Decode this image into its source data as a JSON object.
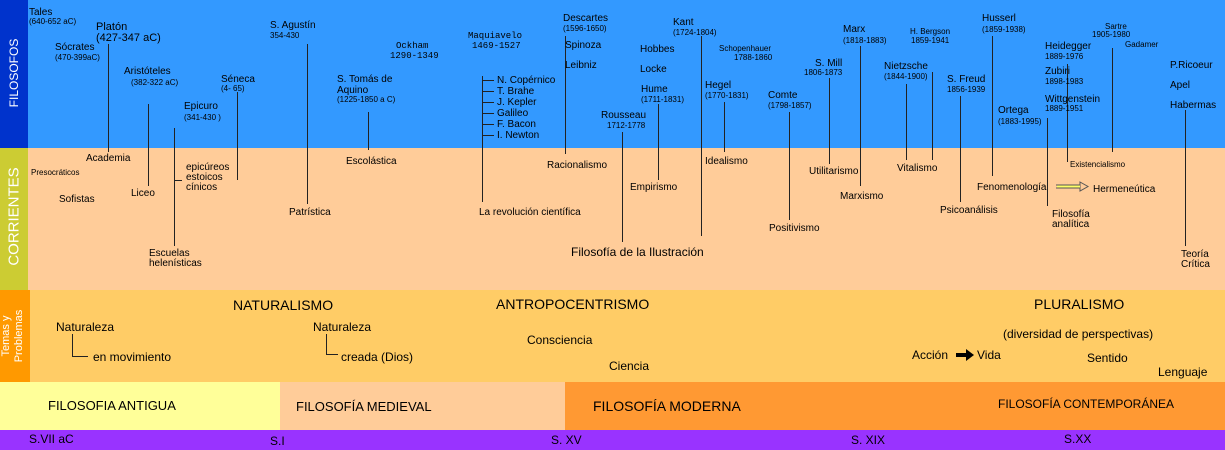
{
  "colors": {
    "filosofos_band": "#3399ff",
    "filosofos_label_bg": "#0033cc",
    "corrientes_band": "#ffcc99",
    "corrientes_label_bg": "#cccc33",
    "temas_band": "#ffcc66",
    "temas_label_bg": "#ff9900",
    "antigua": "#ffff99",
    "medieval": "#ffcc99",
    "moderna": "#ff9933",
    "contemporanea": "#ff9933",
    "century_bar": "#9933ff"
  },
  "rows": {
    "filosofos": "FILOSOFOS",
    "corrientes": "CORRIENTES",
    "temas": "Temas y\nProblemas"
  },
  "philosophers": {
    "tales": "Tales",
    "tales_d": "(640-652 aC)",
    "platon": "Platón",
    "platon_d": "(427-347 aC)",
    "socrates": "Sócrates",
    "socrates_d": "(470-399aC)",
    "aristoteles": "Aristóteles",
    "aristoteles_d": "(382-322 aC)",
    "seneca": "Séneca",
    "seneca_d": "(4- 65)",
    "epicuro": "Epicuro",
    "epicuro_d": "(341-430 )",
    "agustin": "S. Agustín",
    "agustin_d": "354-430",
    "tomas1": "S. Tomás de",
    "tomas2": "Aquino",
    "tomas_d": "(1225-1850 a C)",
    "ockham": "Ockham",
    "ockham_d": "1290-1349",
    "maquiavelo": "Maquiavelo",
    "maquiavelo_d": "1469-1527",
    "copernico": "N. Copérnico",
    "brahe": "T. Brahe",
    "kepler": "J. Kepler",
    "galileo": "Galileo",
    "bacon": "F. Bacon",
    "newton": "I. Newton",
    "descartes": "Descartes",
    "descartes_d": "(1596-1650)",
    "spinoza": "Spinoza",
    "leibniz": "Leibniz",
    "rousseau": "Rousseau",
    "rousseau_d": "1712-1778",
    "kant": "Kant",
    "kant_d": "(1724-1804)",
    "hobbes": "Hobbes",
    "locke": "Locke",
    "hume": "Hume",
    "hume_d": "(1711-1831)",
    "schopenhauer": "Schopenhauer",
    "schopenhauer_d": "1788-1860",
    "hegel": "Hegel",
    "hegel_d": "(1770-1831)",
    "comte": "Comte",
    "comte_d": "(1798-1857)",
    "mill": "S. Mill",
    "mill_d": "1806-1873",
    "marx": "Marx",
    "marx_d": "(1818-1883)",
    "bergson": "H. Bergson",
    "bergson_d": "1859-1941",
    "nietzsche": "Nietzsche",
    "nietzsche_d": "(1844-1900)",
    "freud": "S. Freud",
    "freud_d": "1856-1939",
    "husserl": "Husserl",
    "husserl_d": "(1859-1938)",
    "ortega": "Ortega",
    "ortega_d": "(1883-1995)",
    "sartre": "Sartre",
    "sartre_d": "1905-1980",
    "heidegger": "Heidegger",
    "heidegger_d": "1889-1976",
    "gadamer": "Gadamer",
    "zubiri": "Zubiri",
    "zubiri_d": "1898-1983",
    "wittgenstein": "Wittgenstein",
    "wittgenstein_d": "1889-1951",
    "ricoeur": "P.Ricoeur",
    "apel": "Apel",
    "habermas": "Habermas"
  },
  "currents": {
    "presocraticos": "Presocráticos",
    "sofistas": "Sofistas",
    "academia": "Academia",
    "liceo": "Liceo",
    "epicureos": "epicúreos",
    "estoicos": "estoicos",
    "cinicos": "cínicos",
    "helenisticas1": "Escuelas",
    "helenisticas2": "helenísticas",
    "patristica": "Patrística",
    "escolastica": "Escolástica",
    "revolucion": "La revolución científica",
    "racionalismo": "Racionalismo",
    "empirismo": "Empirismo",
    "ilustracion": "Filosofía de la Ilustración",
    "idealismo": "Idealismo",
    "positivismo": "Positivismo",
    "utilitarismo": "Utilitarismo",
    "marxismo": "Marxismo",
    "vitalismo": "Vitalismo",
    "psicoanalisis": "Psicoanálisis",
    "fenomenologia": "Fenomenología",
    "existencialismo": "Existencialismo",
    "hermeneutica": "Hermeneútica",
    "analitica1": "Filosofía",
    "analitica2": "analítica",
    "critica1": "Teoría",
    "critica2": "Crítica"
  },
  "themes": {
    "naturalismo": "NATURALISMO",
    "antropocentrismo": "ANTROPOCENTRISMO",
    "pluralismo": "PLURALISMO",
    "naturaleza1": "Naturaleza",
    "movimiento": "en movimiento",
    "naturaleza2": "Naturaleza",
    "creada": "creada (Dios)",
    "consciencia": "Consciencia",
    "ciencia": "Ciencia",
    "diversidad": "(diversidad de perspectivas)",
    "accion": "Acción",
    "vida": "Vida",
    "sentido": "Sentido",
    "lenguaje": "Lenguaje"
  },
  "periods": {
    "antigua": "FILOSOFIA ANTIGUA",
    "medieval": "FILOSOFÍA MEDIEVAL",
    "moderna": "FILOSOFÍA MODERNA",
    "contemporanea": "FILOSOFÍA CONTEMPORÁNEA"
  },
  "centuries": {
    "c1": "S.VII aC",
    "c2": "S.I",
    "c3": "S. XV",
    "c4": "S. XIX",
    "c5": "S.XX"
  }
}
